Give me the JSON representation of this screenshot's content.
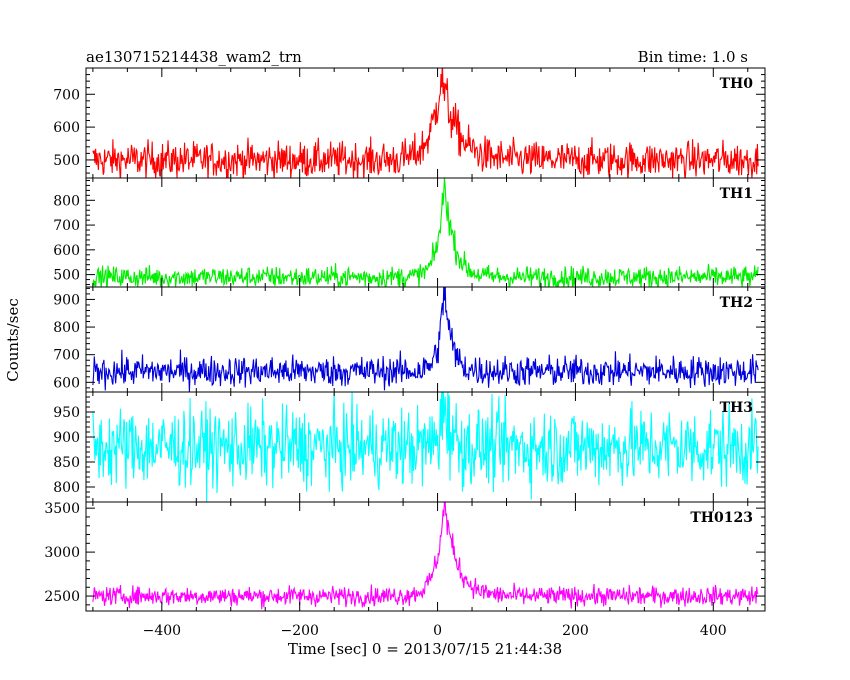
{
  "header": {
    "title": "ae130715214438_wam2_trn",
    "bin_time": "Bin time: 1.0 s"
  },
  "axes": {
    "ylabel": "Counts/sec",
    "xlabel": "Time [sec] 0 = 2013/07/15 21:44:38"
  },
  "chart_data": {
    "type": "line",
    "x_range": [
      -510,
      475
    ],
    "x_ticks": [
      -400,
      -200,
      0,
      200,
      400
    ],
    "x_tick_labels": [
      "−400",
      "−200",
      "0",
      "200",
      "400"
    ],
    "bin_time_s": 1.0,
    "panels": [
      {
        "name": "TH0",
        "color": "#ff0000",
        "ylim": [
          445,
          780
        ],
        "y_ticks": [
          500,
          600,
          700
        ],
        "baseline": 500,
        "noise": 28,
        "peak": 760,
        "peak_x": 5,
        "decay_rise": 14,
        "decay_fall": 22
      },
      {
        "name": "TH1",
        "color": "#00ee00",
        "ylim": [
          450,
          890
        ],
        "y_ticks": [
          500,
          600,
          700,
          800
        ],
        "baseline": 490,
        "noise": 22,
        "peak": 870,
        "peak_x": 10,
        "decay_rise": 10,
        "decay_fall": 14
      },
      {
        "name": "TH2",
        "color": "#0000dd",
        "ylim": [
          565,
          945
        ],
        "y_ticks": [
          600,
          700,
          800,
          900
        ],
        "baseline": 640,
        "noise": 28,
        "peak": 945,
        "peak_x": 10,
        "decay_rise": 8,
        "decay_fall": 10
      },
      {
        "name": "TH3",
        "color": "#00ffff",
        "ylim": [
          770,
          990
        ],
        "y_ticks": [
          800,
          850,
          900,
          950
        ],
        "baseline": 880,
        "noise": 40,
        "peak": 990,
        "peak_x": 10,
        "decay_rise": 6,
        "decay_fall": 8
      },
      {
        "name": "TH0123",
        "color": "#ff00ff",
        "ylim": [
          2330,
          3570
        ],
        "y_ticks": [
          2500,
          3000,
          3500
        ],
        "baseline": 2500,
        "noise": 55,
        "peak": 3560,
        "peak_x": 10,
        "decay_rise": 12,
        "decay_fall": 18
      }
    ]
  }
}
